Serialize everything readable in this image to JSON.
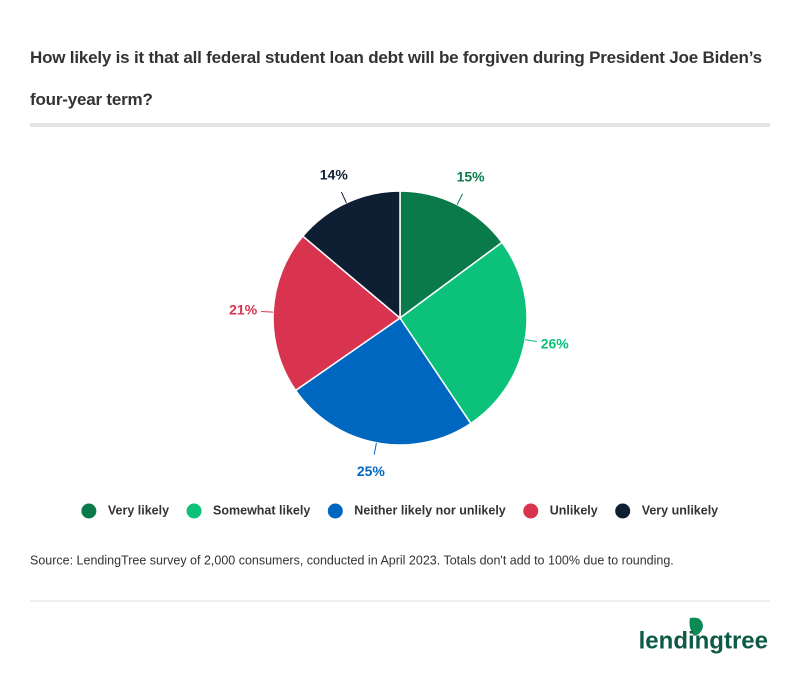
{
  "chart_data": {
    "type": "pie",
    "title": "How likely is it that all federal student loan debt will be forgiven during President Joe Biden’s four-year term?",
    "categories": [
      "Very likely",
      "Somewhat likely",
      "Neither likely nor unlikely",
      "Unlikely",
      "Very unlikely"
    ],
    "values": [
      15,
      26,
      25,
      21,
      14
    ],
    "value_labels": [
      "15%",
      "26%",
      "25%",
      "21%",
      "14%"
    ],
    "colors": [
      "#0b7a4b",
      "#0cc27a",
      "#0067c0",
      "#d9344f",
      "#0f1f33"
    ],
    "legend": "bottom",
    "source": "Source: LendingTree survey of 2,000 consumers, conducted in April 2023. Totals don't add to 100% due to rounding.",
    "logo": "lendingtree"
  }
}
